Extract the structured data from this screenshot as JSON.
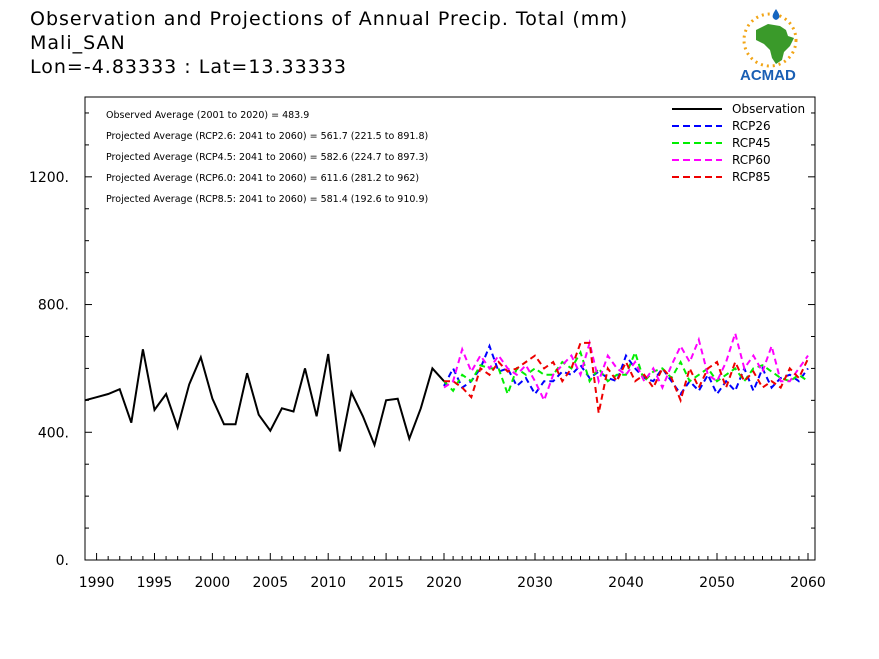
{
  "header": {
    "title_line1": "Observation and Projections of Annual Precip. Total (mm)",
    "title_line2": "Mali_SAN",
    "title_line3": "Lon=-4.83333 : Lat=13.33333"
  },
  "logo": {
    "name": "ACMAD",
    "text": "ACMAD",
    "colors": {
      "africa": "#3a9a2a",
      "sun": "#f2a516",
      "drop": "#1565c0",
      "text": "#1a5fb4"
    }
  },
  "stats": [
    "Observed Average (2001 to 2020) = 483.9",
    "Projected Average (RCP2.6: 2041 to 2060) = 561.7 (221.5 to 891.8)",
    "Projected Average (RCP4.5: 2041 to 2060) = 582.6 (224.7 to 897.3)",
    "Projected Average (RCP6.0: 2041 to 2060) = 611.6 (281.2 to 962)",
    "Projected Average (RCP8.5: 2041 to 2060) = 581.4 (192.6 to 910.9)"
  ],
  "chart_data": {
    "type": "line",
    "title": "Observation and Projections of Annual Precip. Total (mm)",
    "xlabel": "",
    "ylabel": "",
    "xlim": [
      1989,
      2060
    ],
    "ylim": [
      0,
      1450
    ],
    "x_ticks": [
      1990,
      1995,
      2000,
      2005,
      2010,
      2015,
      2020,
      2030,
      2040,
      2050,
      2060
    ],
    "y_ticks": [
      0,
      400,
      800,
      1200
    ],
    "y_tick_labels": [
      "0.",
      "400.",
      "800.",
      "1200."
    ],
    "grid": false,
    "legend_position": "top-right",
    "series": [
      {
        "name": "Observation",
        "color": "#000000",
        "style": "solid",
        "x": [
          1989,
          1990,
          1991,
          1992,
          1993,
          1994,
          1995,
          1996,
          1997,
          1998,
          1999,
          2000,
          2001,
          2002,
          2003,
          2004,
          2005,
          2006,
          2007,
          2008,
          2009,
          2010,
          2011,
          2012,
          2013,
          2014,
          2015,
          2016,
          2017,
          2018,
          2019,
          2020
        ],
        "values": [
          500,
          510,
          520,
          535,
          430,
          660,
          470,
          520,
          415,
          550,
          635,
          505,
          425,
          425,
          585,
          455,
          405,
          475,
          465,
          600,
          450,
          645,
          340,
          525,
          450,
          360,
          500,
          505,
          380,
          475,
          600,
          560
        ]
      },
      {
        "name": "RCP26",
        "color": "#0000ff",
        "style": "dashed",
        "x": [
          2020,
          2021,
          2022,
          2023,
          2024,
          2025,
          2026,
          2027,
          2028,
          2029,
          2030,
          2031,
          2032,
          2033,
          2034,
          2035,
          2036,
          2037,
          2038,
          2039,
          2040,
          2041,
          2042,
          2043,
          2044,
          2045,
          2046,
          2047,
          2048,
          2049,
          2050,
          2051,
          2052,
          2053,
          2054,
          2055,
          2056,
          2057,
          2058,
          2059,
          2060
        ],
        "values": [
          545,
          600,
          540,
          560,
          600,
          670,
          590,
          600,
          545,
          570,
          520,
          560,
          560,
          590,
          580,
          610,
          570,
          590,
          570,
          560,
          640,
          600,
          570,
          560,
          600,
          560,
          520,
          560,
          530,
          580,
          520,
          560,
          530,
          600,
          530,
          600,
          540,
          570,
          580,
          560,
          600
        ]
      },
      {
        "name": "RCP45",
        "color": "#00ee00",
        "style": "dashed",
        "x": [
          2020,
          2021,
          2022,
          2023,
          2024,
          2025,
          2026,
          2027,
          2028,
          2029,
          2030,
          2031,
          2032,
          2033,
          2034,
          2035,
          2036,
          2037,
          2038,
          2039,
          2040,
          2041,
          2042,
          2043,
          2044,
          2045,
          2046,
          2047,
          2048,
          2049,
          2050,
          2051,
          2052,
          2053,
          2054,
          2055,
          2056,
          2057,
          2058,
          2059,
          2060
        ],
        "values": [
          560,
          530,
          580,
          560,
          610,
          600,
          600,
          520,
          600,
          580,
          600,
          580,
          580,
          620,
          600,
          650,
          560,
          600,
          560,
          580,
          580,
          650,
          560,
          590,
          600,
          570,
          620,
          560,
          580,
          600,
          560,
          580,
          600,
          560,
          600,
          610,
          590,
          570,
          560,
          580,
          560
        ]
      },
      {
        "name": "RCP60",
        "color": "#ff00ff",
        "style": "dashed",
        "x": [
          2020,
          2021,
          2022,
          2023,
          2024,
          2025,
          2026,
          2027,
          2028,
          2029,
          2030,
          2031,
          2032,
          2033,
          2034,
          2035,
          2036,
          2037,
          2038,
          2039,
          2040,
          2041,
          2042,
          2043,
          2044,
          2045,
          2046,
          2047,
          2048,
          2049,
          2050,
          2051,
          2052,
          2053,
          2054,
          2055,
          2056,
          2057,
          2058,
          2059,
          2060
        ],
        "values": [
          540,
          560,
          660,
          590,
          640,
          600,
          640,
          600,
          580,
          610,
          560,
          500,
          580,
          610,
          640,
          580,
          680,
          560,
          640,
          600,
          580,
          620,
          560,
          600,
          540,
          610,
          670,
          620,
          690,
          580,
          560,
          620,
          710,
          600,
          640,
          590,
          670,
          560,
          560,
          600,
          640
        ]
      },
      {
        "name": "RCP85",
        "color": "#ee0000",
        "style": "dashed",
        "x": [
          2020,
          2021,
          2022,
          2023,
          2024,
          2025,
          2026,
          2027,
          2028,
          2029,
          2030,
          2031,
          2032,
          2033,
          2034,
          2035,
          2036,
          2037,
          2038,
          2039,
          2040,
          2041,
          2042,
          2043,
          2044,
          2045,
          2046,
          2047,
          2048,
          2049,
          2050,
          2051,
          2052,
          2053,
          2054,
          2055,
          2056,
          2057,
          2058,
          2059,
          2060
        ],
        "values": [
          560,
          560,
          540,
          510,
          600,
          580,
          620,
          590,
          600,
          620,
          640,
          600,
          620,
          560,
          600,
          680,
          680,
          460,
          600,
          560,
          620,
          560,
          580,
          540,
          600,
          570,
          500,
          600,
          540,
          600,
          620,
          540,
          620,
          560,
          590,
          540,
          560,
          540,
          600,
          570,
          630
        ]
      }
    ]
  }
}
